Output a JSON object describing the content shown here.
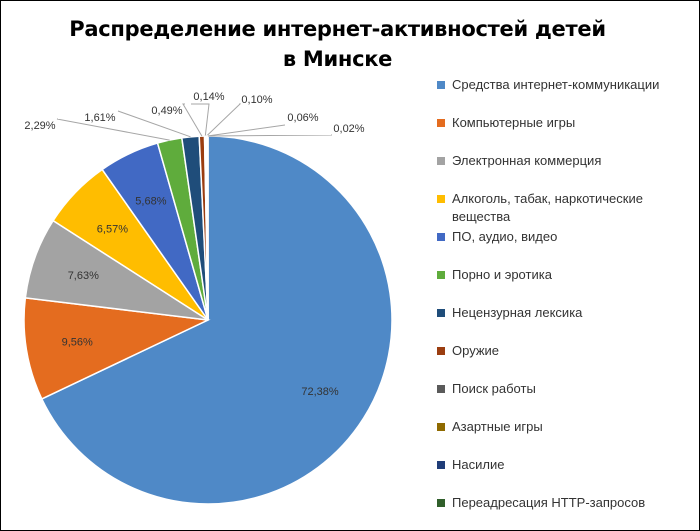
{
  "chart_data": {
    "type": "pie",
    "title": [
      "Распределение интернет-активностей детей",
      "в Минске"
    ],
    "start_angle_deg": 0,
    "direction": "clockwise",
    "legend_position": "right",
    "slices": [
      {
        "name": "Средства интернет-коммуникации",
        "value": 72.38,
        "label": "72,38%",
        "color": "#4f89c7"
      },
      {
        "name": "Компьютерные игры",
        "value": 9.56,
        "label": "9,56%",
        "color": "#e46c1f"
      },
      {
        "name": "Электронная коммерция",
        "value": 7.63,
        "label": "7,63%",
        "color": "#a3a3a3"
      },
      {
        "name": "Алкоголь, табак, наркотические вещества",
        "value": 6.57,
        "label": "6,57%",
        "color": "#ffbd00"
      },
      {
        "name": "ПО, аудио, видео",
        "value": 5.68,
        "label": "5,68%",
        "color": "#4169c4"
      },
      {
        "name": "Порно и эротика",
        "value": 2.29,
        "label": "2,29%",
        "color": "#5fac3c"
      },
      {
        "name": "Нецензурная лексика",
        "value": 1.61,
        "label": "1,61%",
        "color": "#1f4d7a"
      },
      {
        "name": "Оружие",
        "value": 0.49,
        "label": "0,49%",
        "color": "#9b3d10"
      },
      {
        "name": "Поиск работы",
        "value": 0.14,
        "label": "0,14%",
        "color": "#5a5a5a"
      },
      {
        "name": "Азартные игры",
        "value": 0.1,
        "label": "0,10%",
        "color": "#8f6a00"
      },
      {
        "name": "Насилие",
        "value": 0.06,
        "label": "0,06%",
        "color": "#203d78"
      },
      {
        "name": "Переадресация HTTP-запросов",
        "value": 0.02,
        "label": "0,02%",
        "color": "#305f2b"
      }
    ]
  }
}
